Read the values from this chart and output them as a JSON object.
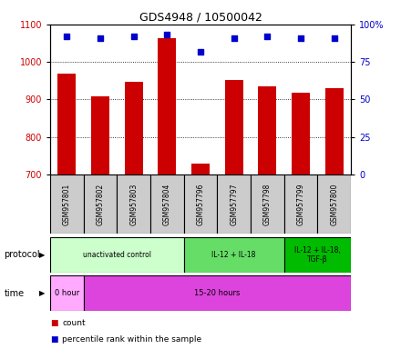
{
  "title": "GDS4948 / 10500042",
  "samples": [
    "GSM957801",
    "GSM957802",
    "GSM957803",
    "GSM957804",
    "GSM957796",
    "GSM957797",
    "GSM957798",
    "GSM957799",
    "GSM957800"
  ],
  "counts": [
    968,
    908,
    948,
    1063,
    730,
    952,
    936,
    918,
    930
  ],
  "percentile_ranks": [
    92,
    91,
    92,
    93,
    82,
    91,
    92,
    91,
    91
  ],
  "bar_color": "#cc0000",
  "dot_color": "#0000cc",
  "ylim_left": [
    700,
    1100
  ],
  "ylim_right": [
    0,
    100
  ],
  "yticks_left": [
    700,
    800,
    900,
    1000,
    1100
  ],
  "yticks_right": [
    0,
    25,
    50,
    75,
    100
  ],
  "protocol_groups": [
    {
      "label": "unactivated control",
      "start": 0,
      "end": 4,
      "color": "#ccffcc"
    },
    {
      "label": "IL-12 + IL-18",
      "start": 4,
      "end": 7,
      "color": "#66dd66"
    },
    {
      "label": "IL-12 + IL-18,\nTGF-β",
      "start": 7,
      "end": 9,
      "color": "#00bb00"
    }
  ],
  "time_groups": [
    {
      "label": "0 hour",
      "start": 0,
      "end": 1,
      "color": "#ffaaff"
    },
    {
      "label": "15-20 hours",
      "start": 1,
      "end": 9,
      "color": "#dd44dd"
    }
  ],
  "legend_items": [
    {
      "color": "#cc0000",
      "label": "count"
    },
    {
      "color": "#0000cc",
      "label": "percentile rank within the sample"
    }
  ],
  "background_color": "#ffffff",
  "plot_bg_color": "#ffffff",
  "tick_label_color_left": "#cc0000",
  "tick_label_color_right": "#0000cc",
  "sample_box_color": "#cccccc"
}
